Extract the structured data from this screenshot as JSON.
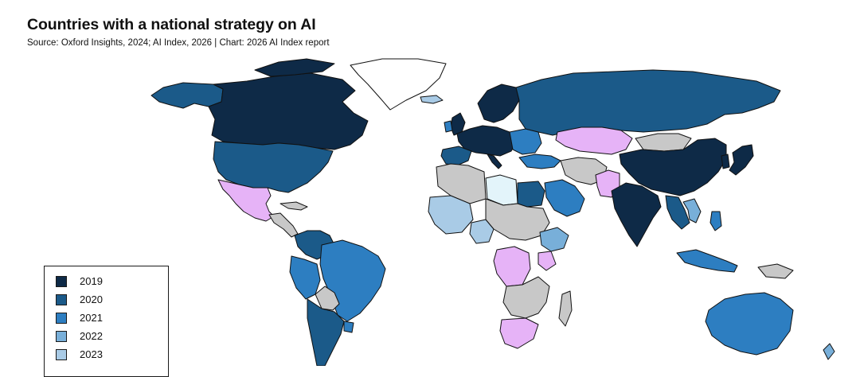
{
  "header": {
    "title": "Countries with a national strategy on AI",
    "subtitle": "Source: Oxford Insights, 2024; AI Index, 2026 | Chart: 2026 AI Index report"
  },
  "colors": {
    "c2019": "#0e2a47",
    "c2020": "#1b5a89",
    "c2021": "#2d7ec1",
    "c2022": "#78afd9",
    "c2023": "#a9cbe6",
    "c2024": "#e3f4fa",
    "in_development": "#e6b3f7",
    "no_strategy": "#c8c8c8",
    "border": "#111111"
  },
  "legend": {
    "items": [
      {
        "label": "2019",
        "color": "#0e2a47"
      },
      {
        "label": "2020",
        "color": "#1b5a89"
      },
      {
        "label": "2021",
        "color": "#2d7ec1"
      },
      {
        "label": "2022",
        "color": "#78afd9"
      },
      {
        "label": "2023",
        "color": "#a9cbe6"
      }
    ]
  }
}
